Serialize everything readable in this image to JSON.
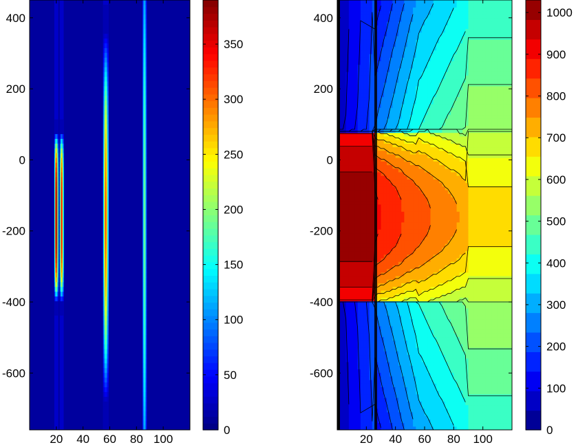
{
  "chart_data": [
    {
      "type": "heatmap",
      "title": "",
      "xlabel": "",
      "ylabel": "",
      "xlim": [
        0,
        120
      ],
      "ylim": [
        -760,
        450
      ],
      "x_ticks": [
        20,
        40,
        60,
        80,
        100
      ],
      "y_ticks": [
        400,
        200,
        0,
        -200,
        -400,
        -600
      ],
      "colormap": "jet",
      "colorbar": {
        "range": [
          0,
          390
        ],
        "ticks": [
          0,
          50,
          100,
          150,
          200,
          250,
          300,
          350
        ]
      },
      "bands": [
        {
          "x_center": 20,
          "width": 3,
          "peak": 390,
          "y_center": -160,
          "y_half": 240,
          "edge": "sharp"
        },
        {
          "x_center": 24,
          "width": 3,
          "peak": 340,
          "y_center": -160,
          "y_half": 240,
          "edge": "sharp"
        },
        {
          "x_center": 57,
          "width": 4,
          "peak": 320,
          "y_center": -160,
          "y_half": 520,
          "edge": "soft"
        },
        {
          "x_center": 86,
          "width": 3,
          "peak": 200,
          "y_center": -160,
          "y_half": 900,
          "edge": "soft"
        }
      ],
      "grid": false
    },
    {
      "type": "heatmap",
      "title": "",
      "xlabel": "",
      "ylabel": "",
      "xlim": [
        0,
        120
      ],
      "ylim": [
        -760,
        450
      ],
      "x_ticks": [
        20,
        40,
        60,
        80,
        100
      ],
      "y_ticks": [
        400,
        200,
        0,
        -200,
        -400,
        -600
      ],
      "colormap": "jet",
      "style": "filled contour",
      "colorbar": {
        "range": [
          0,
          1030
        ],
        "ticks": [
          0,
          100,
          200,
          300,
          400,
          500,
          600,
          700,
          800,
          900,
          1000
        ]
      },
      "plateau": {
        "y_range": [
          -400,
          80
        ],
        "max_value": 1030
      },
      "grid": false
    }
  ]
}
